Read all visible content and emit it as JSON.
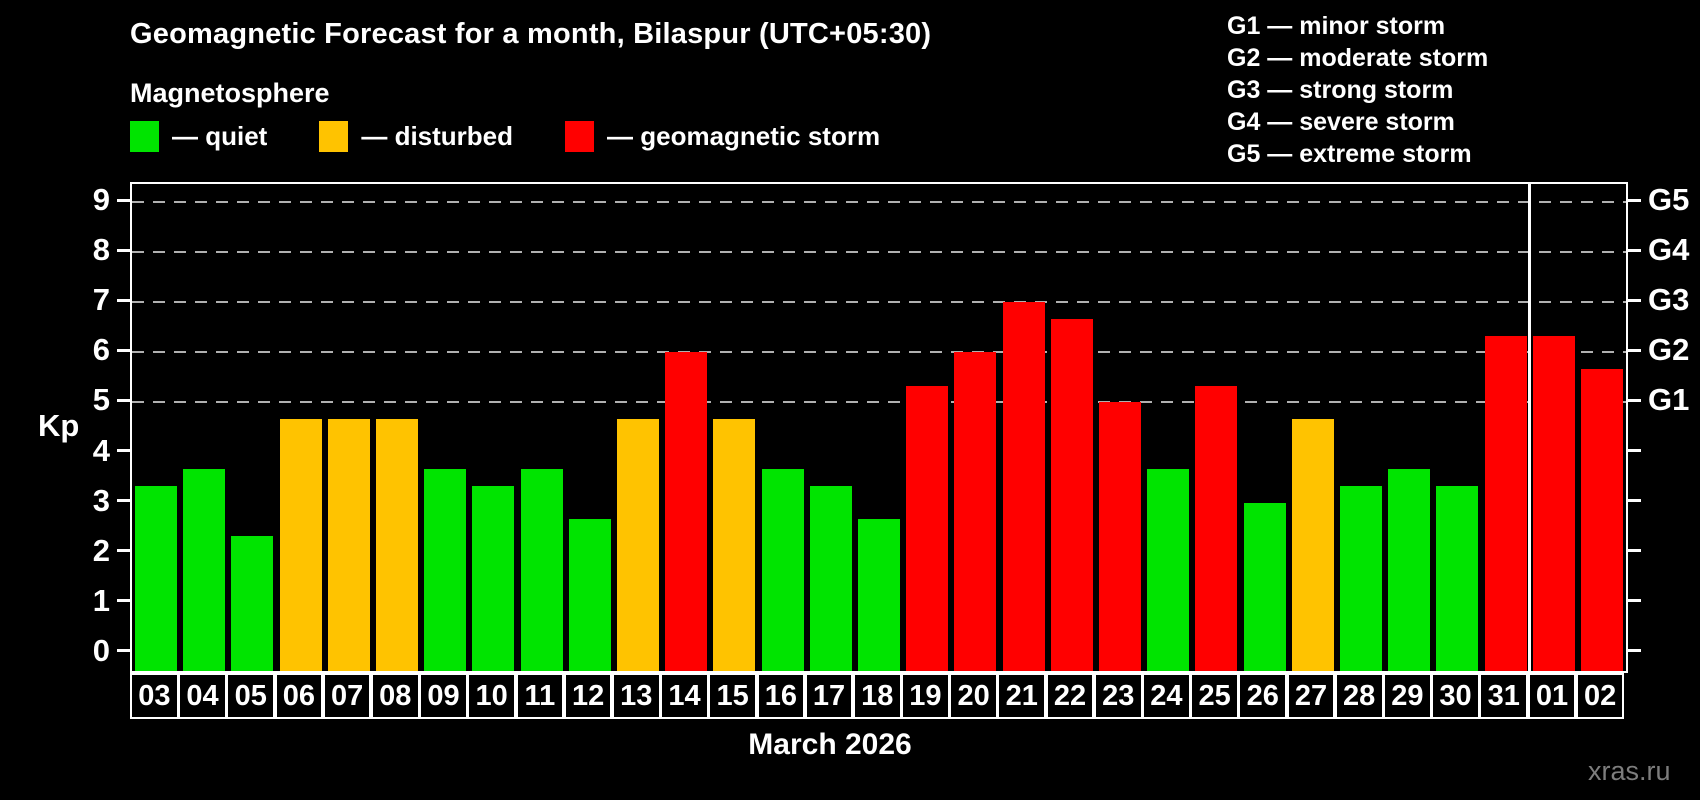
{
  "page": {
    "background": "#000000",
    "text_color": "#ffffff"
  },
  "header": {
    "title": "Geomagnetic Forecast for a month, Bilaspur (UTC+05:30)",
    "subtitle": "Magnetosphere"
  },
  "legend": {
    "items": [
      {
        "label": "— quiet",
        "status": "quiet"
      },
      {
        "label": "— disturbed",
        "status": "disturbed"
      },
      {
        "label": "— geomagnetic storm",
        "status": "storm"
      }
    ]
  },
  "g_scale_legend": {
    "lines": [
      "G1 — minor storm",
      "G2 — moderate storm",
      "G3 — strong storm",
      "G4 — severe storm",
      "G5 — extreme storm"
    ]
  },
  "footer": {
    "month_label": "March 2026",
    "watermark": "xras.ru"
  },
  "chart_data": {
    "type": "bar",
    "title": "Geomagnetic Forecast for a month, Bilaspur (UTC+05:30)",
    "xlabel": "March 2026",
    "ylabel": "Kp",
    "ylim": [
      0,
      9
    ],
    "y_tick_labels": [
      "0",
      "1",
      "2",
      "3",
      "4",
      "5",
      "6",
      "7",
      "8",
      "9"
    ],
    "categories": [
      "03",
      "04",
      "05",
      "06",
      "07",
      "08",
      "09",
      "10",
      "11",
      "12",
      "13",
      "14",
      "15",
      "16",
      "17",
      "18",
      "19",
      "20",
      "21",
      "22",
      "23",
      "24",
      "25",
      "26",
      "27",
      "28",
      "29",
      "30",
      "31",
      "01",
      "02"
    ],
    "values": [
      3.33,
      3.67,
      2.33,
      4.67,
      4.67,
      4.67,
      3.67,
      3.33,
      3.67,
      2.67,
      4.67,
      6.0,
      4.67,
      3.67,
      3.33,
      2.67,
      5.33,
      6.0,
      7.0,
      6.67,
      5.0,
      3.67,
      5.33,
      3.0,
      4.67,
      3.33,
      3.67,
      3.33,
      6.33,
      6.33,
      5.67
    ],
    "statuses": [
      "quiet",
      "quiet",
      "quiet",
      "disturbed",
      "disturbed",
      "disturbed",
      "quiet",
      "quiet",
      "quiet",
      "quiet",
      "disturbed",
      "storm",
      "disturbed",
      "quiet",
      "quiet",
      "quiet",
      "storm",
      "storm",
      "storm",
      "storm",
      "storm",
      "quiet",
      "storm",
      "quiet",
      "disturbed",
      "quiet",
      "quiet",
      "quiet",
      "storm",
      "storm",
      "storm"
    ],
    "status_colors": {
      "quiet": "#00e400",
      "disturbed": "#ffc300",
      "storm": "#ff0000"
    },
    "grid_color": "#b0b0b0",
    "gridlines_kp": [
      5,
      6,
      7,
      8,
      9
    ],
    "right_axis": [
      {
        "kp": 5,
        "label": "G1"
      },
      {
        "kp": 6,
        "label": "G2"
      },
      {
        "kp": 7,
        "label": "G3"
      },
      {
        "kp": 8,
        "label": "G4"
      },
      {
        "kp": 9,
        "label": "G5"
      }
    ],
    "month_separator_after": "31",
    "legend_position": "top",
    "grid": true
  }
}
